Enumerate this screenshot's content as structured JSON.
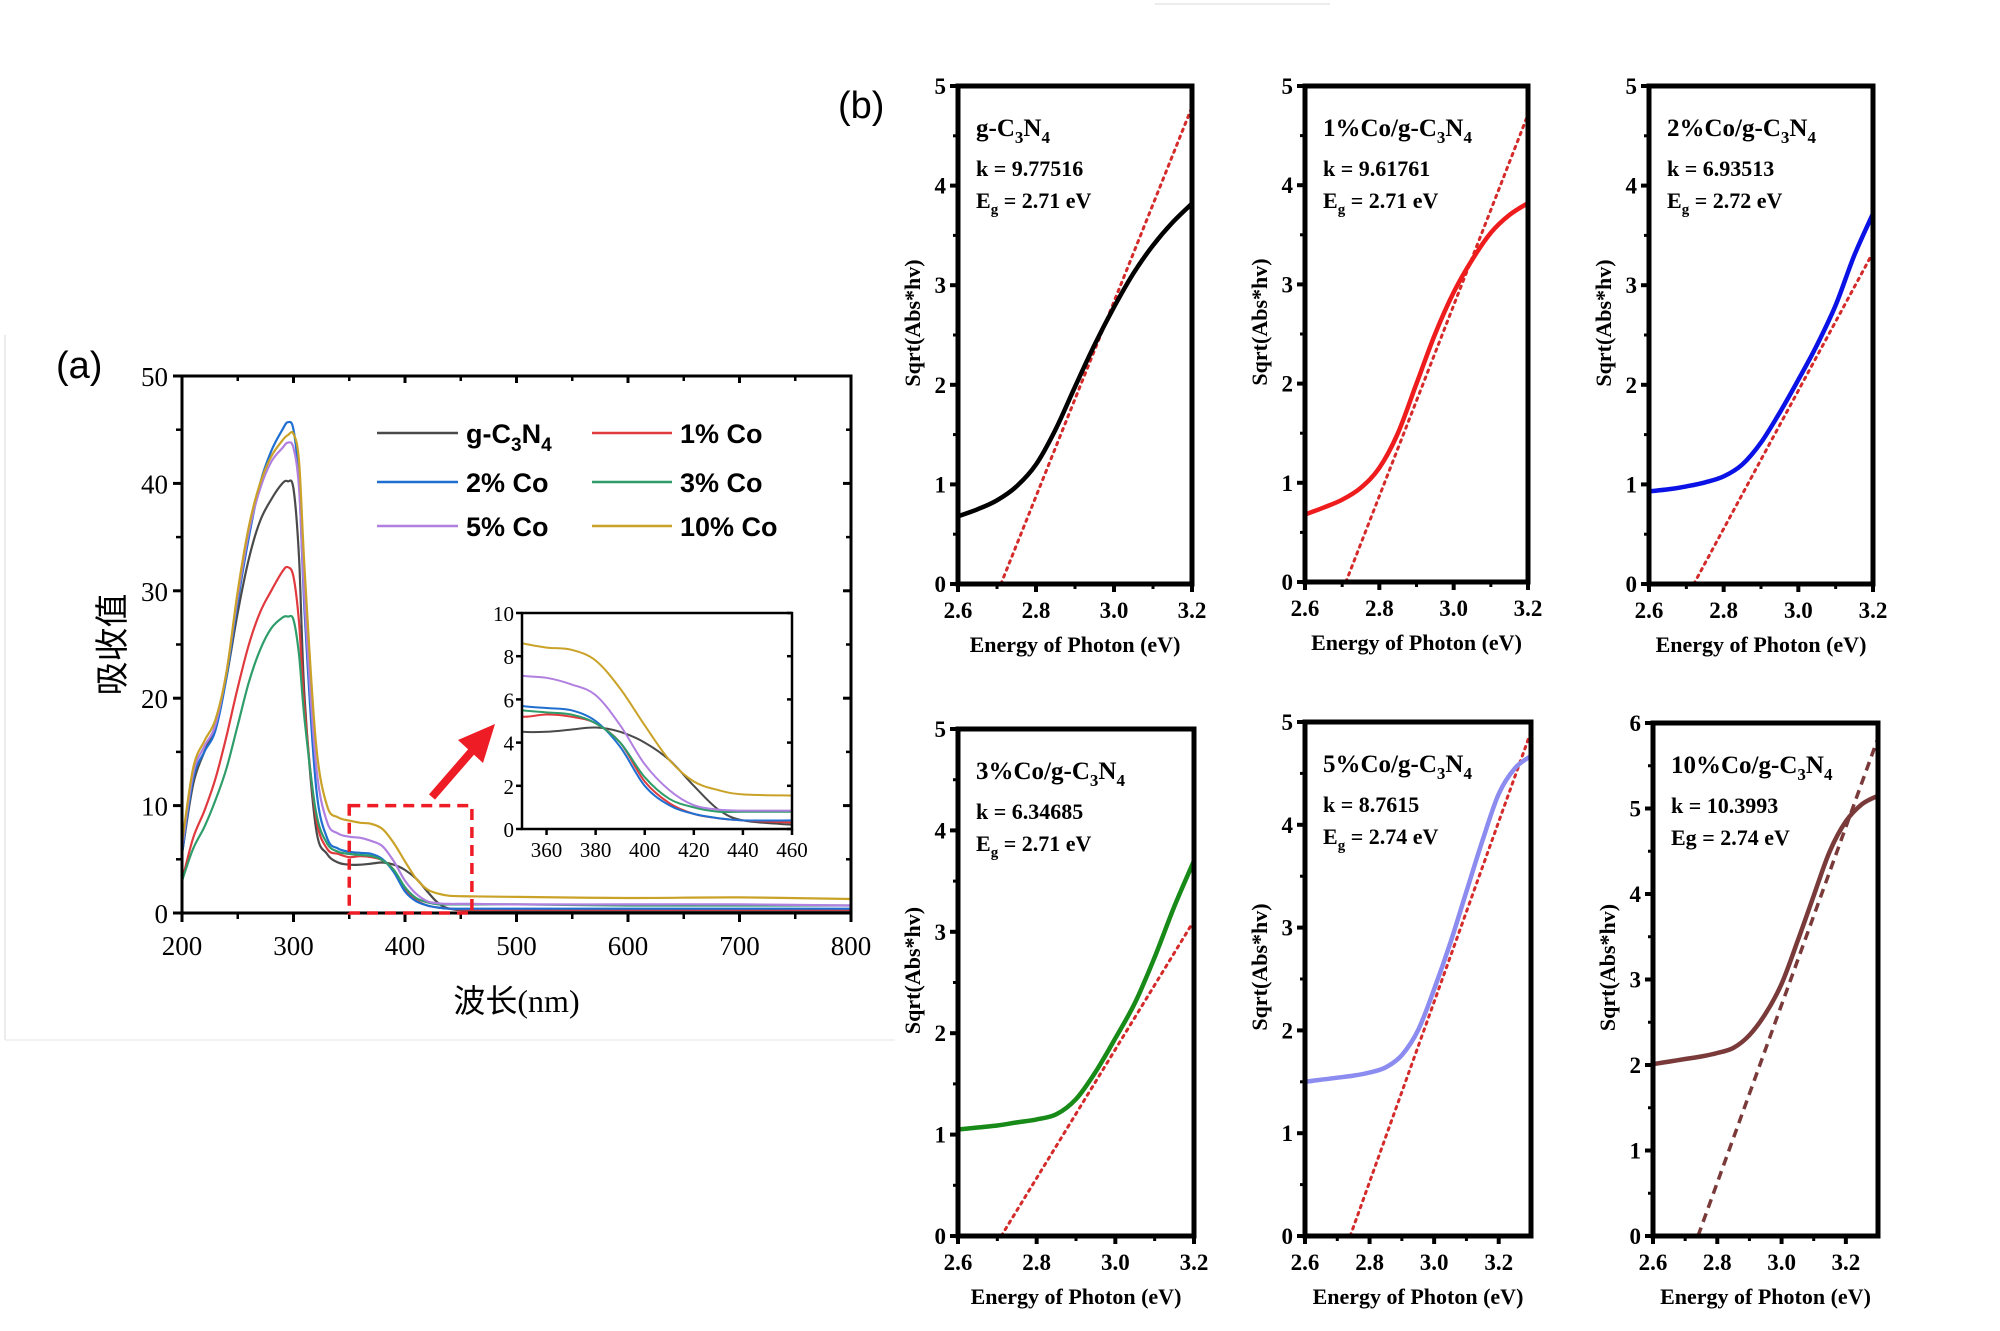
{
  "figure": {
    "panel_a_label": "(a)",
    "panel_b_label": "(b)"
  },
  "chart_data": [
    {
      "id": "a",
      "type": "line",
      "title": "",
      "xlabel": "波长(nm)",
      "ylabel": "吸收值",
      "xlim": [
        200,
        800
      ],
      "ylim": [
        0,
        50
      ],
      "xticks": [
        200,
        300,
        400,
        500,
        600,
        700,
        800
      ],
      "yticks": [
        0,
        10,
        20,
        30,
        40,
        50
      ],
      "legend_position": "top-right",
      "legend": [
        {
          "label_main": "g-C",
          "sub1": "3",
          "mid": "N",
          "sub2": "4",
          "color": "#4a4a4a"
        },
        {
          "label": "1% Co",
          "color": "#e0393e"
        },
        {
          "label": "2% Co",
          "color": "#1f6fd1"
        },
        {
          "label": "3% Co",
          "color": "#2e9d6a"
        },
        {
          "label": "5% Co",
          "color": "#b07fe0"
        },
        {
          "label": "10% Co",
          "color": "#c9a227"
        }
      ],
      "series": [
        {
          "name": "g-C3N4",
          "color": "#4a4a4a",
          "x": [
            200,
            210,
            220,
            230,
            240,
            250,
            260,
            270,
            280,
            290,
            295,
            300,
            305,
            310,
            320,
            330,
            340,
            350,
            360,
            370,
            380,
            390,
            400,
            410,
            420,
            430,
            440,
            460,
            500,
            600,
            700,
            800
          ],
          "y": [
            5.5,
            12,
            15,
            17.5,
            22,
            28,
            33,
            36.5,
            38.5,
            40,
            40.2,
            39.5,
            33,
            20,
            8,
            5.5,
            4.7,
            4.5,
            4.5,
            4.6,
            4.7,
            4.5,
            4.0,
            3.2,
            2.0,
            0.9,
            0.4,
            0.2,
            0.2,
            0.2,
            0.2,
            0.2
          ]
        },
        {
          "name": "1% Co",
          "color": "#e0393e",
          "x": [
            200,
            210,
            220,
            230,
            240,
            250,
            260,
            270,
            280,
            290,
            295,
            300,
            305,
            310,
            320,
            330,
            340,
            350,
            360,
            370,
            380,
            390,
            400,
            410,
            420,
            430,
            440,
            460,
            500,
            600,
            700,
            800
          ],
          "y": [
            3,
            7,
            9.5,
            12.5,
            16.5,
            21,
            25,
            28,
            30,
            31.8,
            32.2,
            31.3,
            27,
            19,
            9,
            6,
            5.5,
            5.2,
            5.3,
            5.2,
            4.9,
            4.0,
            2.2,
            1.2,
            0.7,
            0.5,
            0.4,
            0.3,
            0.3,
            0.3,
            0.3,
            0.3
          ]
        },
        {
          "name": "2% Co",
          "color": "#1f6fd1",
          "x": [
            200,
            210,
            220,
            230,
            240,
            250,
            260,
            270,
            280,
            290,
            295,
            300,
            305,
            310,
            320,
            330,
            340,
            350,
            360,
            370,
            380,
            390,
            400,
            410,
            420,
            430,
            440,
            460,
            500,
            600,
            700,
            800
          ],
          "y": [
            5.5,
            12.5,
            15,
            17,
            22,
            29,
            35,
            40,
            43,
            45,
            45.7,
            45,
            40,
            28,
            12,
            7,
            6,
            5.7,
            5.6,
            5.5,
            5.0,
            3.8,
            2.0,
            1.1,
            0.7,
            0.5,
            0.4,
            0.4,
            0.4,
            0.4,
            0.4,
            0.4
          ]
        },
        {
          "name": "3% Co",
          "color": "#2e9d6a",
          "x": [
            200,
            210,
            220,
            230,
            240,
            250,
            260,
            270,
            280,
            290,
            295,
            300,
            305,
            310,
            320,
            330,
            340,
            350,
            360,
            370,
            380,
            390,
            400,
            410,
            420,
            430,
            440,
            460,
            500,
            600,
            700,
            800
          ],
          "y": [
            3,
            6,
            8,
            10.5,
            13.5,
            17.5,
            21.5,
            24.5,
            26.5,
            27.5,
            27.6,
            27.3,
            24,
            18,
            9.5,
            6.5,
            5.7,
            5.5,
            5.4,
            5.3,
            4.9,
            4.0,
            2.4,
            1.4,
            1.0,
            0.8,
            0.8,
            0.8,
            0.8,
            0.7,
            0.7,
            0.7
          ]
        },
        {
          "name": "5% Co",
          "color": "#b07fe0",
          "x": [
            200,
            210,
            220,
            230,
            240,
            250,
            260,
            270,
            280,
            290,
            295,
            300,
            305,
            310,
            320,
            330,
            340,
            350,
            360,
            370,
            380,
            390,
            400,
            410,
            420,
            430,
            440,
            460,
            500,
            600,
            700,
            800
          ],
          "y": [
            6,
            13,
            15.5,
            17.5,
            22.5,
            29.5,
            35.5,
            39.5,
            42,
            43.3,
            43.8,
            43.3,
            39.5,
            29,
            14,
            8.5,
            7.4,
            7.1,
            7.0,
            6.7,
            6.2,
            4.8,
            3.0,
            1.8,
            1.1,
            0.9,
            0.85,
            0.85,
            0.8,
            0.8,
            0.8,
            0.7
          ]
        },
        {
          "name": "10% Co",
          "color": "#c9a227",
          "x": [
            200,
            210,
            220,
            230,
            240,
            250,
            260,
            270,
            280,
            290,
            295,
            300,
            305,
            310,
            320,
            330,
            340,
            350,
            360,
            370,
            380,
            390,
            400,
            410,
            420,
            430,
            440,
            460,
            500,
            600,
            700,
            800
          ],
          "y": [
            6.5,
            13.5,
            16,
            18,
            22.5,
            30,
            36,
            40,
            42.5,
            44,
            44.5,
            44.6,
            42,
            32,
            16,
            10,
            8.9,
            8.6,
            8.4,
            8.3,
            7.8,
            6.5,
            4.8,
            3.2,
            2.2,
            1.8,
            1.6,
            1.55,
            1.5,
            1.4,
            1.45,
            1.3
          ]
        }
      ],
      "zoom_box": {
        "x": [
          350,
          460
        ],
        "y": [
          0,
          10
        ]
      },
      "inset": {
        "xlim": [
          350,
          460
        ],
        "ylim": [
          0,
          10
        ],
        "xticks": [
          360,
          380,
          400,
          420,
          440,
          460
        ],
        "yticks": [
          0,
          2,
          4,
          6,
          8,
          10
        ]
      }
    },
    {
      "id": "b1",
      "type": "line",
      "title": "g-C3N4",
      "title_parts": [
        "g-C",
        "3",
        "N",
        "4"
      ],
      "k_text": "k = 9.77516",
      "eg_main": "E",
      "eg_sub": "g",
      "eg_rest": " = 2.71 eV",
      "k": 9.77516,
      "Eg": 2.71,
      "xlabel": "Energy of Photon (eV)",
      "ylabel": "Sqrt(Abs*hv)",
      "xlim": [
        2.6,
        3.2
      ],
      "ylim": [
        0,
        5
      ],
      "xticks": [
        "2.6",
        "2.8",
        "3.0",
        "3.2"
      ],
      "yticks": [
        0,
        1,
        2,
        3,
        4,
        5
      ],
      "curve_color": "#000000",
      "fit_color": "#d42a2a",
      "fit_style": "dotted",
      "x": [
        2.6,
        2.65,
        2.7,
        2.75,
        2.8,
        2.85,
        2.9,
        2.95,
        3.0,
        3.05,
        3.1,
        3.15,
        3.2
      ],
      "y": [
        0.68,
        0.75,
        0.84,
        0.98,
        1.2,
        1.55,
        1.98,
        2.4,
        2.78,
        3.12,
        3.4,
        3.63,
        3.82
      ]
    },
    {
      "id": "b2",
      "type": "line",
      "title": "1%Co/g-C3N4",
      "title_parts": [
        "1%Co/g-C",
        "3",
        "N",
        "4"
      ],
      "k_text": "k = 9.61761",
      "eg_main": "E",
      "eg_sub": "g",
      "eg_rest": " = 2.71 eV",
      "k": 9.61761,
      "Eg": 2.71,
      "xlabel": "Energy of Photon (eV)",
      "ylabel": "Sqrt(Abs*hv)",
      "xlim": [
        2.6,
        3.2
      ],
      "ylim": [
        0,
        5
      ],
      "xticks": [
        "2.6",
        "2.8",
        "3.0",
        "3.2"
      ],
      "yticks": [
        0,
        1,
        2,
        3,
        4,
        5
      ],
      "curve_color": "#ee1c1c",
      "fit_color": "#d42a2a",
      "fit_style": "dotted",
      "x": [
        2.6,
        2.65,
        2.7,
        2.75,
        2.8,
        2.85,
        2.9,
        2.95,
        3.0,
        3.05,
        3.1,
        3.15,
        3.2
      ],
      "y": [
        0.68,
        0.75,
        0.83,
        0.95,
        1.15,
        1.5,
        2.0,
        2.5,
        2.92,
        3.25,
        3.52,
        3.7,
        3.82
      ]
    },
    {
      "id": "b3",
      "type": "line",
      "title": "2%Co/g-C3N4",
      "title_parts": [
        "2%Co/g-C",
        "3",
        "N",
        "4"
      ],
      "k_text": "k = 6.93513",
      "eg_main": "E",
      "eg_sub": "g",
      "eg_rest": " = 2.72 eV",
      "k": 6.93513,
      "Eg": 2.72,
      "xlabel": "Energy of Photon (eV)",
      "ylabel": "Sqrt(Abs*hv)",
      "xlim": [
        2.6,
        3.2
      ],
      "ylim": [
        0,
        5
      ],
      "xticks": [
        "2.6",
        "2.8",
        "3.0",
        "3.2"
      ],
      "yticks": [
        0,
        1,
        2,
        3,
        4,
        5
      ],
      "curve_color": "#0a12e6",
      "fit_color": "#d42a2a",
      "fit_style": "dotted",
      "x": [
        2.6,
        2.65,
        2.7,
        2.75,
        2.8,
        2.85,
        2.9,
        2.95,
        3.0,
        3.05,
        3.1,
        3.15,
        3.2
      ],
      "y": [
        0.93,
        0.95,
        0.98,
        1.02,
        1.08,
        1.2,
        1.42,
        1.72,
        2.05,
        2.4,
        2.8,
        3.3,
        3.72
      ]
    },
    {
      "id": "b4",
      "type": "line",
      "title": "3%Co/g-C3N4",
      "title_parts": [
        "3%Co/g-C",
        "3",
        "N",
        "4"
      ],
      "k_text": "k = 6.34685",
      "eg_main": "E",
      "eg_sub": "g",
      "eg_rest": " = 2.71 eV",
      "k": 6.34685,
      "Eg": 2.71,
      "xlabel": "Energy of  Photon (eV)",
      "ylabel": "Sqrt(Abs*hv)",
      "xlim": [
        2.6,
        3.2
      ],
      "ylim": [
        0,
        5
      ],
      "xticks": [
        "2.6",
        "2.8",
        "3.0",
        "3.2"
      ],
      "yticks": [
        0,
        1,
        2,
        3,
        4,
        5
      ],
      "curve_color": "#178a17",
      "fit_color": "#d42a2a",
      "fit_style": "dotted",
      "x": [
        2.6,
        2.65,
        2.7,
        2.75,
        2.8,
        2.85,
        2.9,
        2.95,
        3.0,
        3.05,
        3.1,
        3.15,
        3.2
      ],
      "y": [
        1.05,
        1.07,
        1.09,
        1.12,
        1.15,
        1.2,
        1.35,
        1.62,
        1.95,
        2.3,
        2.75,
        3.25,
        3.7
      ]
    },
    {
      "id": "b5",
      "type": "line",
      "title": "5%Co/g-C3N4",
      "title_parts": [
        "5%Co/g-C",
        "3",
        "N",
        "4"
      ],
      "k_text": "k = 8.7615",
      "eg_main": "E",
      "eg_sub": "g",
      "eg_rest": " = 2.74 eV",
      "k": 8.7615,
      "Eg": 2.74,
      "xlabel": "Energy of Photon (eV)",
      "ylabel": "Sqrt(Abs*hv)",
      "xlim": [
        2.6,
        3.3
      ],
      "ylim": [
        0,
        5
      ],
      "xticks": [
        "2.6",
        "2.8",
        "3.0",
        "3.2"
      ],
      "yticks": [
        0,
        1,
        2,
        3,
        4,
        5
      ],
      "curve_color": "#8b8bf0",
      "fit_color": "#d42a2a",
      "fit_style": "dotted",
      "x": [
        2.6,
        2.65,
        2.7,
        2.75,
        2.8,
        2.85,
        2.9,
        2.95,
        3.0,
        3.05,
        3.1,
        3.15,
        3.2,
        3.25,
        3.3
      ],
      "y": [
        1.5,
        1.52,
        1.54,
        1.56,
        1.59,
        1.64,
        1.76,
        2.0,
        2.4,
        2.85,
        3.35,
        3.85,
        4.3,
        4.55,
        4.67
      ]
    },
    {
      "id": "b6",
      "type": "line",
      "title": "10%Co/g-C3N4",
      "title_parts": [
        "10%Co/g-C",
        "3",
        "N",
        "4"
      ],
      "k_text": "k = 10.3993",
      "eg_main": "Eg",
      "eg_sub": "",
      "eg_rest": " = 2.74 eV",
      "k": 10.3993,
      "Eg": 2.74,
      "xlabel": "Energy of  Photon (eV)",
      "ylabel": "Sqrt(Abs*hv)",
      "xlim": [
        2.6,
        3.3
      ],
      "ylim": [
        0,
        6
      ],
      "xticks": [
        "2.6",
        "2.8",
        "3.0",
        "3.2"
      ],
      "yticks": [
        0,
        1,
        2,
        3,
        4,
        5,
        6
      ],
      "curve_color": "#7a3a3a",
      "fit_color": "#7a3a3a",
      "fit_style": "dashed",
      "x": [
        2.6,
        2.65,
        2.7,
        2.75,
        2.8,
        2.85,
        2.9,
        2.95,
        3.0,
        3.05,
        3.1,
        3.15,
        3.2,
        3.25,
        3.3
      ],
      "y": [
        2.01,
        2.04,
        2.07,
        2.1,
        2.14,
        2.2,
        2.35,
        2.6,
        2.95,
        3.45,
        3.98,
        4.5,
        4.85,
        5.05,
        5.15
      ]
    }
  ]
}
